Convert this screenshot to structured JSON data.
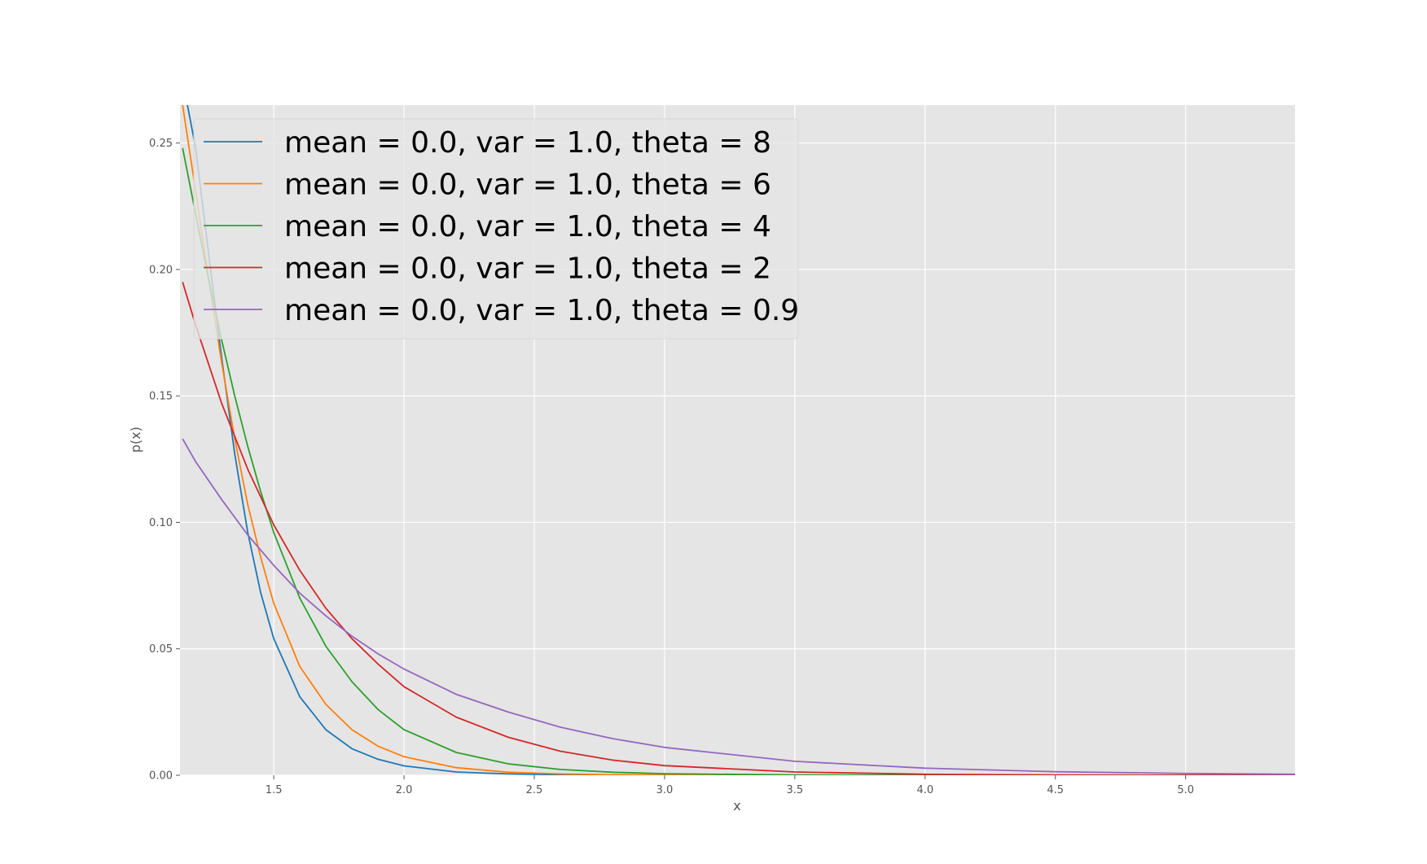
{
  "chart_data": {
    "type": "line",
    "title": "",
    "xlabel": "x",
    "ylabel": "p(x)",
    "xlim": [
      1.14,
      5.42
    ],
    "ylim": [
      0.0,
      0.265
    ],
    "x_ticks": [
      1.5,
      2.0,
      2.5,
      3.0,
      3.5,
      4.0,
      4.5,
      5.0
    ],
    "x_tick_labels": [
      "1.5",
      "2.0",
      "2.5",
      "3.0",
      "3.5",
      "4.0",
      "4.5",
      "5.0"
    ],
    "y_ticks": [
      0.0,
      0.05,
      0.1,
      0.15,
      0.2,
      0.25
    ],
    "y_tick_labels": [
      "0.00",
      "0.05",
      "0.10",
      "0.15",
      "0.20",
      "0.25"
    ],
    "grid": true,
    "legend_position": "top-left",
    "background_color": "#e5e5e5",
    "grid_color": "#ffffff",
    "series": [
      {
        "name": "mean = 0.0, var = 1.0, theta = 8",
        "color": "#1f77b4",
        "x": [
          1.15,
          1.2,
          1.25,
          1.3,
          1.35,
          1.4,
          1.45,
          1.5,
          1.6,
          1.7,
          1.8,
          1.9,
          2.0,
          2.2,
          2.4,
          2.6,
          3.0,
          3.5,
          4.0,
          5.0,
          5.42
        ],
        "y": [
          0.275,
          0.248,
          0.206,
          0.165,
          0.127,
          0.096,
          0.072,
          0.054,
          0.031,
          0.018,
          0.0105,
          0.0063,
          0.0037,
          0.0013,
          0.0005,
          0.0002,
          0.0,
          0.0,
          0.0,
          0.0,
          0.0
        ]
      },
      {
        "name": "mean = 0.0, var = 1.0, theta = 6",
        "color": "#ff7f0e",
        "x": [
          1.15,
          1.2,
          1.25,
          1.3,
          1.35,
          1.4,
          1.45,
          1.5,
          1.6,
          1.7,
          1.8,
          1.9,
          2.0,
          2.2,
          2.4,
          2.6,
          2.8,
          3.0,
          3.5,
          4.0,
          5.0,
          5.42
        ],
        "y": [
          0.265,
          0.231,
          0.196,
          0.163,
          0.133,
          0.107,
          0.086,
          0.068,
          0.043,
          0.028,
          0.018,
          0.0115,
          0.0073,
          0.003,
          0.0012,
          0.0005,
          0.0002,
          0.0001,
          0.0,
          0.0,
          0.0,
          0.0
        ]
      },
      {
        "name": "mean = 0.0, var = 1.0, theta = 4",
        "color": "#2ca02c",
        "x": [
          1.15,
          1.2,
          1.25,
          1.3,
          1.35,
          1.4,
          1.45,
          1.5,
          1.6,
          1.7,
          1.8,
          1.9,
          2.0,
          2.2,
          2.4,
          2.6,
          2.8,
          3.0,
          3.5,
          4.0,
          5.0,
          5.42
        ],
        "y": [
          0.248,
          0.222,
          0.196,
          0.172,
          0.15,
          0.13,
          0.112,
          0.096,
          0.07,
          0.051,
          0.037,
          0.026,
          0.018,
          0.009,
          0.0045,
          0.0023,
          0.0012,
          0.0006,
          0.0001,
          0.0,
          0.0,
          0.0
        ]
      },
      {
        "name": "mean = 0.0, var = 1.0, theta = 2",
        "color": "#d62728",
        "x": [
          1.15,
          1.2,
          1.3,
          1.4,
          1.5,
          1.6,
          1.7,
          1.8,
          1.9,
          2.0,
          2.2,
          2.4,
          2.6,
          2.8,
          3.0,
          3.5,
          4.0,
          4.5,
          5.0,
          5.42
        ],
        "y": [
          0.195,
          0.178,
          0.147,
          0.121,
          0.099,
          0.081,
          0.066,
          0.054,
          0.044,
          0.035,
          0.023,
          0.015,
          0.0095,
          0.006,
          0.0038,
          0.0013,
          0.0004,
          0.0001,
          0.0,
          0.0
        ]
      },
      {
        "name": "mean = 0.0, var = 1.0, theta = 0.9",
        "color": "#9467bd",
        "x": [
          1.15,
          1.2,
          1.3,
          1.4,
          1.5,
          1.6,
          1.7,
          1.8,
          1.9,
          2.0,
          2.2,
          2.4,
          2.6,
          2.8,
          3.0,
          3.5,
          4.0,
          4.5,
          5.0,
          5.42
        ],
        "y": [
          0.133,
          0.124,
          0.109,
          0.095,
          0.083,
          0.072,
          0.063,
          0.055,
          0.048,
          0.042,
          0.032,
          0.025,
          0.019,
          0.0145,
          0.011,
          0.0055,
          0.0028,
          0.0014,
          0.0007,
          0.0004
        ]
      }
    ]
  }
}
